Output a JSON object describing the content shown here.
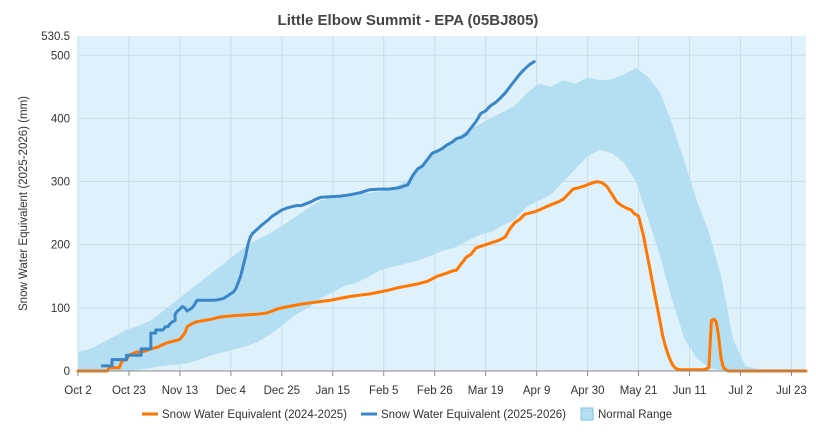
{
  "chart_data": {
    "type": "line",
    "title": "Little Elbow Summit - EPA (05BJ805)",
    "xlabel": "",
    "ylabel": "Snow Water Equivalent (2025-2026) (mm)",
    "ylim": [
      0,
      530.5
    ],
    "y_max_label": "530.5",
    "y_ticks": [
      0,
      100,
      200,
      300,
      400,
      500
    ],
    "x_range_days": [
      0,
      300
    ],
    "x_ticks": [
      {
        "label": "Oct 2",
        "day": 0
      },
      {
        "label": "Oct 23",
        "day": 21
      },
      {
        "label": "Nov 13",
        "day": 42
      },
      {
        "label": "Dec 4",
        "day": 63
      },
      {
        "label": "Dec 25",
        "day": 84
      },
      {
        "label": "Jan 15",
        "day": 105
      },
      {
        "label": "Feb 5",
        "day": 126
      },
      {
        "label": "Feb 26",
        "day": 147
      },
      {
        "label": "Mar 19",
        "day": 168
      },
      {
        "label": "Apr 9",
        "day": 189
      },
      {
        "label": "Apr 30",
        "day": 210
      },
      {
        "label": "May 21",
        "day": 231
      },
      {
        "label": "Jun 11",
        "day": 252
      },
      {
        "label": "Jul 2",
        "day": 273
      },
      {
        "label": "Jul 23",
        "day": 294
      }
    ],
    "series": [
      {
        "name": "Snow Water Equivalent (2024-2025)",
        "color": "#ff7700",
        "x": [
          0,
          10,
          12,
          13,
          17,
          18,
          20,
          21,
          24,
          26,
          28,
          30,
          33,
          35,
          37,
          40,
          42,
          44,
          45,
          47,
          49,
          52,
          55,
          58,
          62,
          66,
          70,
          74,
          78,
          80,
          82,
          84,
          88,
          92,
          96,
          100,
          104,
          108,
          112,
          116,
          120,
          124,
          128,
          132,
          136,
          140,
          144,
          148,
          152,
          154,
          156,
          158,
          160,
          162,
          164,
          168,
          172,
          174,
          176,
          178,
          180,
          182,
          184,
          186,
          188,
          190,
          194,
          196,
          198,
          200,
          202,
          204,
          206,
          208,
          210,
          212,
          214,
          216,
          218,
          220,
          222,
          224,
          226,
          228,
          229,
          231,
          232,
          233,
          234,
          235,
          236,
          237,
          238,
          239,
          240,
          241,
          242,
          243,
          244,
          245,
          246,
          247,
          248,
          249,
          250,
          252,
          255,
          258,
          260,
          261,
          262,
          263,
          264,
          265,
          266,
          267,
          268,
          270,
          272,
          275,
          280,
          290,
          300
        ],
        "values": [
          0,
          0,
          0,
          5,
          5,
          15,
          18,
          25,
          30,
          30,
          32,
          35,
          38,
          42,
          45,
          48,
          50,
          60,
          70,
          75,
          78,
          80,
          82,
          85,
          87,
          88,
          89,
          90,
          92,
          95,
          98,
          100,
          103,
          106,
          108,
          110,
          112,
          115,
          118,
          120,
          122,
          125,
          128,
          132,
          135,
          138,
          142,
          150,
          155,
          158,
          160,
          170,
          180,
          185,
          195,
          200,
          205,
          208,
          212,
          225,
          235,
          240,
          248,
          250,
          252,
          255,
          262,
          265,
          268,
          272,
          280,
          288,
          290,
          292,
          295,
          298,
          300,
          298,
          292,
          280,
          268,
          262,
          258,
          255,
          250,
          245,
          230,
          215,
          195,
          175,
          155,
          135,
          115,
          95,
          75,
          55,
          40,
          28,
          18,
          10,
          5,
          3,
          2,
          2,
          2,
          2,
          2,
          2,
          5,
          80,
          82,
          78,
          55,
          20,
          5,
          2,
          0,
          0,
          0,
          0,
          0,
          0,
          0
        ]
      },
      {
        "name": "Snow Water Equivalent (2025-2026)",
        "color": "#3a86c8",
        "x": [
          10,
          14,
          14,
          20,
          20,
          26,
          26,
          30,
          30,
          32,
          32,
          34,
          35,
          36,
          37,
          38,
          39,
          40,
          40,
          41,
          42,
          43,
          44,
          45,
          47,
          48,
          49,
          50,
          51,
          52,
          53,
          54,
          56,
          58,
          60,
          62,
          64,
          65,
          66,
          67,
          68,
          69,
          70,
          71,
          72,
          74,
          76,
          78,
          80,
          82,
          84,
          86,
          88,
          90,
          92,
          94,
          96,
          98,
          100,
          104,
          108,
          112,
          116,
          120,
          124,
          128,
          132,
          136,
          138,
          140,
          142,
          144,
          146,
          148,
          150,
          152,
          154,
          156,
          158,
          160,
          162,
          164,
          166,
          168,
          170,
          172,
          174,
          176,
          178,
          180,
          182,
          184,
          186,
          188
        ],
        "values": [
          8,
          8,
          18,
          18,
          25,
          25,
          35,
          35,
          60,
          60,
          65,
          65,
          65,
          70,
          70,
          75,
          78,
          80,
          90,
          95,
          98,
          102,
          100,
          95,
          100,
          105,
          112,
          112,
          112,
          112,
          112,
          112,
          112,
          113,
          115,
          120,
          125,
          130,
          140,
          150,
          165,
          180,
          200,
          212,
          218,
          225,
          232,
          238,
          245,
          250,
          255,
          258,
          260,
          262,
          262,
          265,
          268,
          272,
          275,
          276,
          277,
          279,
          282,
          287,
          288,
          288,
          290,
          295,
          310,
          320,
          325,
          335,
          345,
          348,
          352,
          358,
          362,
          368,
          370,
          375,
          385,
          395,
          408,
          412,
          420,
          425,
          432,
          440,
          450,
          460,
          470,
          478,
          485,
          490
        ]
      }
    ],
    "normal_range": {
      "name": "Normal Range",
      "fill": "#b4dff2",
      "x": [
        0,
        5,
        10,
        15,
        20,
        25,
        30,
        35,
        40,
        45,
        50,
        55,
        60,
        65,
        70,
        75,
        80,
        85,
        90,
        95,
        100,
        105,
        110,
        115,
        120,
        125,
        130,
        135,
        140,
        145,
        150,
        155,
        160,
        165,
        170,
        175,
        180,
        185,
        190,
        195,
        200,
        205,
        210,
        215,
        220,
        225,
        230,
        235,
        240,
        245,
        250,
        255,
        260,
        265,
        270,
        275,
        280,
        285,
        290,
        295,
        300
      ],
      "upper": [
        30,
        35,
        45,
        55,
        65,
        72,
        80,
        95,
        110,
        125,
        140,
        155,
        170,
        185,
        200,
        210,
        220,
        232,
        245,
        258,
        270,
        275,
        278,
        280,
        282,
        285,
        290,
        300,
        320,
        340,
        355,
        368,
        380,
        390,
        400,
        410,
        420,
        440,
        455,
        450,
        460,
        455,
        465,
        460,
        462,
        470,
        480,
        465,
        440,
        390,
        330,
        270,
        220,
        150,
        50,
        8,
        3,
        3,
        3,
        3,
        3
      ],
      "lower": [
        0,
        0,
        0,
        0,
        0,
        2,
        5,
        8,
        10,
        12,
        18,
        25,
        30,
        35,
        40,
        48,
        60,
        75,
        90,
        100,
        115,
        125,
        135,
        140,
        150,
        160,
        165,
        170,
        175,
        182,
        190,
        195,
        205,
        215,
        220,
        230,
        240,
        260,
        270,
        280,
        300,
        320,
        340,
        350,
        345,
        330,
        300,
        240,
        180,
        110,
        50,
        20,
        5,
        1,
        0,
        0,
        0,
        0,
        0,
        0,
        0
      ]
    },
    "legend_position": "bottom",
    "grid": true
  }
}
